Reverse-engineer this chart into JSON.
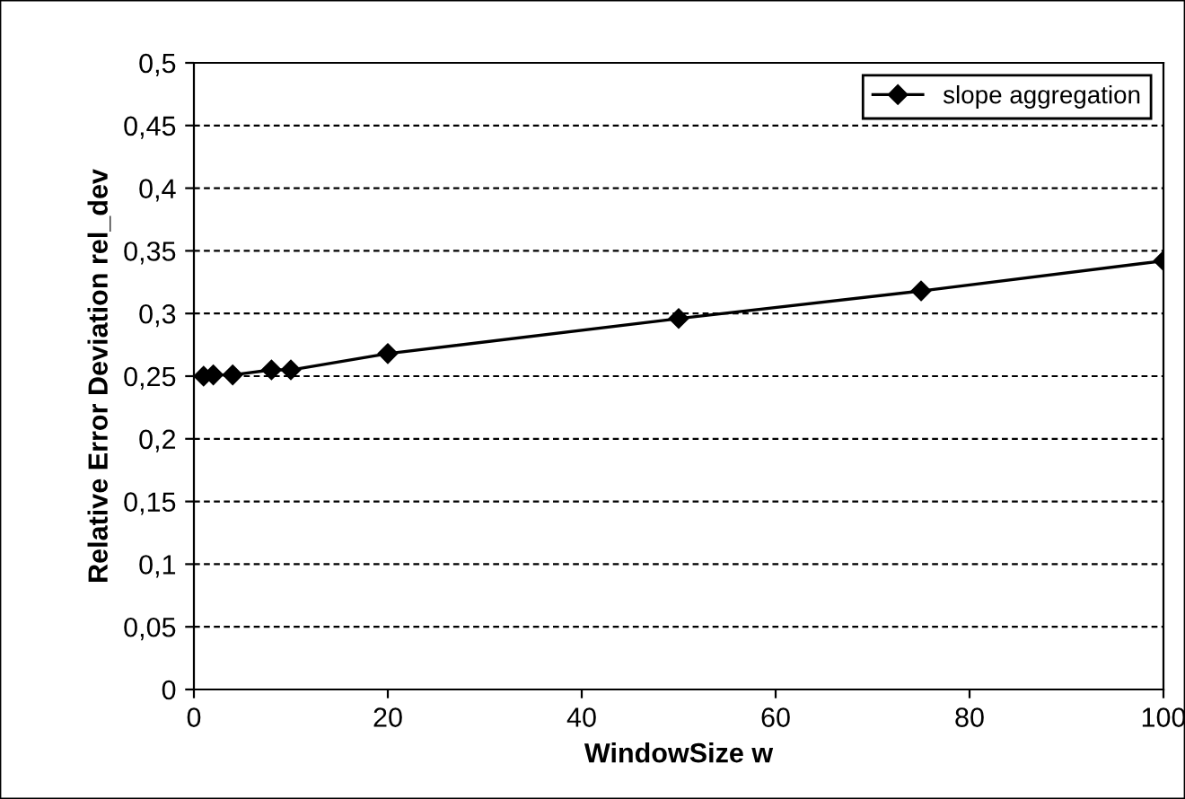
{
  "chart_data": {
    "type": "line",
    "xlabel": "WindowSize w",
    "ylabel": "Relative Error Deviation rel_dev",
    "x": [
      1,
      2,
      4,
      8,
      10,
      20,
      50,
      75,
      100
    ],
    "series": [
      {
        "name": "slope aggregation",
        "color": "#000000",
        "values": [
          0.25,
          0.251,
          0.251,
          0.255,
          0.255,
          0.268,
          0.296,
          0.318,
          0.342
        ]
      }
    ],
    "xlim": [
      0,
      100
    ],
    "xticks": [
      0,
      20,
      40,
      60,
      80,
      {
        "value": 100,
        "label": "100"
      }
    ],
    "ylim": [
      0,
      0.5
    ],
    "yticks": [
      {
        "value": 0,
        "label": "0"
      },
      {
        "value": 0.05,
        "label": "0,05"
      },
      {
        "value": 0.1,
        "label": "0,1"
      },
      {
        "value": 0.15,
        "label": "0,15"
      },
      {
        "value": 0.2,
        "label": "0,2"
      },
      {
        "value": 0.25,
        "label": "0,25"
      },
      {
        "value": 0.3,
        "label": "0,3"
      },
      {
        "value": 0.35,
        "label": "0,35"
      },
      {
        "value": 0.4,
        "label": "0,4"
      },
      {
        "value": 0.45,
        "label": "0,45"
      },
      {
        "value": 0.5,
        "label": "0,5"
      }
    ],
    "grid": "y",
    "legend": "top right",
    "marker": "diamond",
    "line_style": "solid"
  }
}
